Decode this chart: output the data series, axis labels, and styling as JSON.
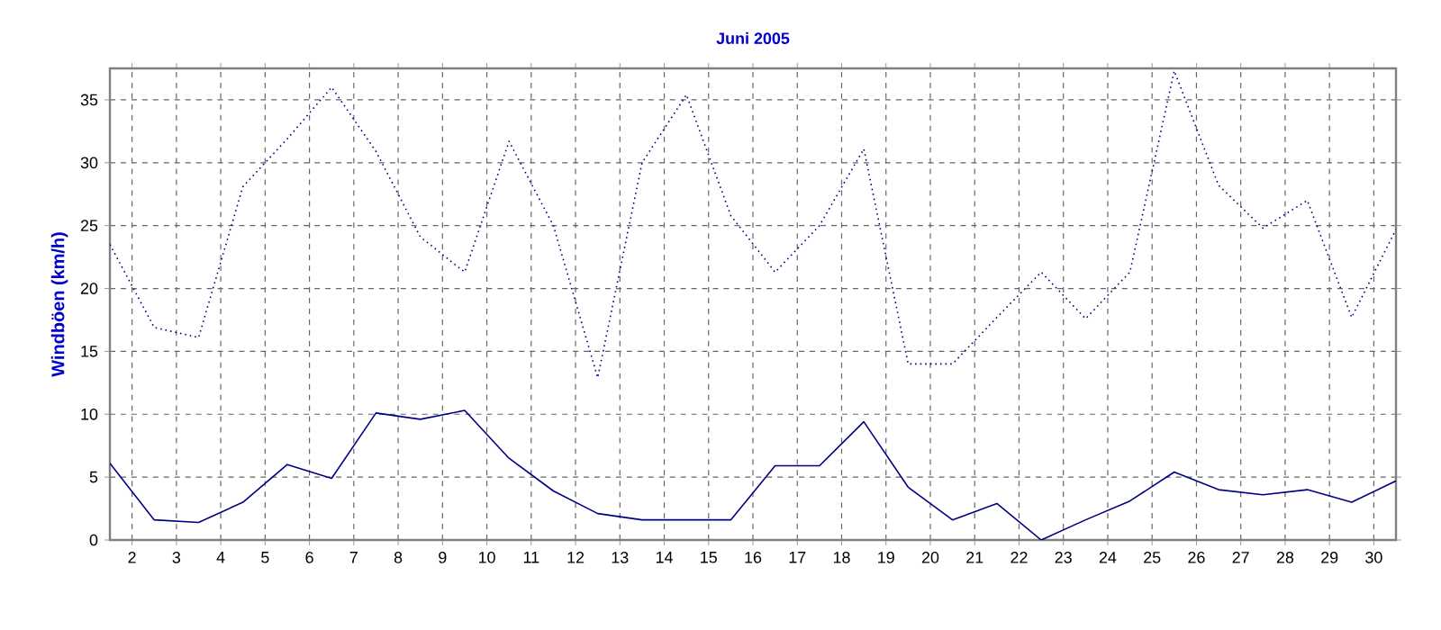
{
  "chart_data": {
    "type": "line",
    "title": "Juni 2005",
    "ylabel": "Windböen  (km/h)",
    "x": [
      1.5,
      2.5,
      3.5,
      4.5,
      5.5,
      6.5,
      7.5,
      8.5,
      9.5,
      10.5,
      11.5,
      12.5,
      13.5,
      14.5,
      15.5,
      16.5,
      17.5,
      18.5,
      19.5,
      20.5,
      21.5,
      22.5,
      23.5,
      24.5,
      25.5,
      26.5,
      27.5,
      28.5,
      29.5,
      30.5
    ],
    "series": [
      {
        "color": "#000080",
        "line_style": "dotted",
        "values": [
          23.5,
          16.9,
          16.1,
          28.1,
          31.9,
          36.0,
          30.9,
          24.1,
          21.3,
          31.7,
          25.0,
          12.9,
          30.0,
          35.4,
          25.8,
          21.3,
          25.0,
          31.1,
          14.0,
          14.0,
          17.7,
          21.3,
          17.6,
          21.3,
          37.3,
          28.2,
          24.8,
          27.0,
          17.7,
          24.7
        ]
      },
      {
        "color": "#000080",
        "line_style": "solid",
        "values": [
          6.1,
          1.6,
          1.4,
          3.0,
          6.0,
          4.9,
          10.1,
          9.6,
          10.3,
          6.5,
          3.9,
          2.1,
          1.6,
          1.6,
          1.6,
          5.9,
          5.9,
          9.4,
          4.2,
          1.6,
          2.9,
          0,
          1.6,
          3.1,
          5.4,
          4.0,
          3.6,
          4.0,
          3.0,
          4.7
        ]
      }
    ],
    "xlim": [
      1.5,
      30.5
    ],
    "xticks": [
      2,
      3,
      4,
      5,
      6,
      7,
      8,
      9,
      10,
      11,
      12,
      13,
      14,
      15,
      16,
      17,
      18,
      19,
      20,
      21,
      22,
      23,
      24,
      25,
      26,
      27,
      28,
      29,
      30
    ],
    "ylim": [
      0,
      37.5
    ],
    "yticks": [
      0,
      5,
      10,
      15,
      20,
      25,
      30,
      35
    ],
    "grid": true,
    "marker": "none"
  }
}
